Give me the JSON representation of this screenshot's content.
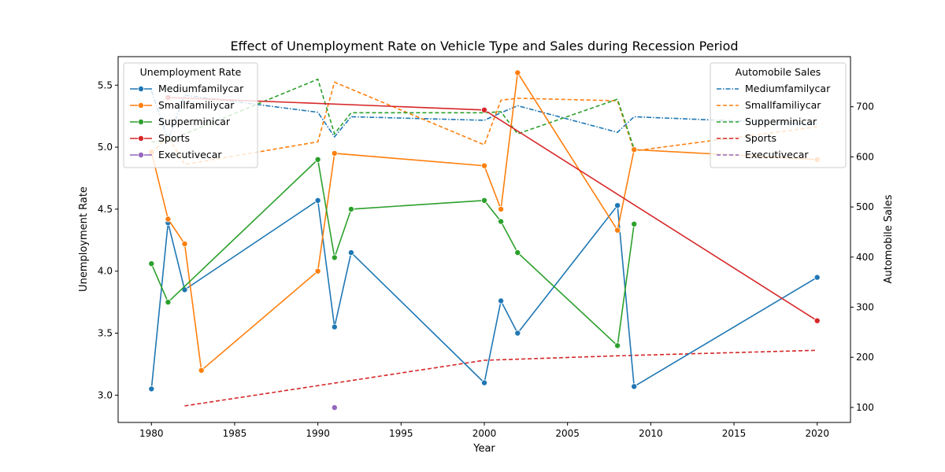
{
  "chart_data": {
    "type": "line",
    "title": "Effect of Unemployment Rate on Vehicle Type and Sales during Recession Period",
    "xlabel": "Year",
    "ylabel_left": "Unemployment Rate",
    "ylabel_right": "Automobile Sales",
    "xlim": [
      1978,
      2022
    ],
    "ylim_left": [
      2.78,
      5.73
    ],
    "ylim_right": [
      70,
      800
    ],
    "xticks": [
      1980,
      1985,
      1990,
      1995,
      2000,
      2005,
      2010,
      2015,
      2020
    ],
    "yticks_left": [
      3.0,
      3.5,
      4.0,
      4.5,
      5.0,
      5.5
    ],
    "yticks_right": [
      100,
      200,
      300,
      400,
      500,
      600,
      700
    ],
    "grid": false,
    "legend_left": {
      "title": "Unemployment Rate",
      "placement": "top-left",
      "entries": [
        "Mediumfamilycar",
        "Smallfamiliycar",
        "Supperminicar",
        "Sports",
        "Executivecar"
      ]
    },
    "legend_right": {
      "title": "Automobile Sales",
      "placement": "top-right",
      "entries": [
        "Mediumfamilycar",
        "Smallfamiliycar",
        "Supperminicar",
        "Sports",
        "Executivecar"
      ]
    },
    "colors": {
      "Mediumfamilycar": "#1f77b4",
      "Smallfamiliycar": "#ff7f0e",
      "Supperminicar": "#2ca02c",
      "Sports": "#d62728",
      "Executivecar": "#9467bd"
    },
    "unemployment_series": [
      {
        "name": "Mediumfamilycar",
        "x": [
          1980,
          1981,
          1982,
          1990,
          1991,
          1992,
          2000,
          2001,
          2002,
          2008,
          2009,
          2020
        ],
        "y": [
          3.05,
          4.39,
          3.85,
          4.57,
          3.55,
          4.15,
          3.1,
          3.76,
          3.5,
          4.53,
          3.07,
          3.95
        ]
      },
      {
        "name": "Smallfamiliycar",
        "x": [
          1980,
          1981,
          1982,
          1983,
          1990,
          1991,
          2000,
          2001,
          2002,
          2008,
          2009,
          2020
        ],
        "y": [
          4.96,
          4.42,
          4.22,
          3.2,
          4.0,
          4.95,
          4.85,
          4.5,
          5.6,
          4.33,
          4.98,
          4.9
        ]
      },
      {
        "name": "Supperminicar",
        "x": [
          1980,
          1981,
          1990,
          1991,
          1992,
          2000,
          2001,
          2002,
          2008,
          2009
        ],
        "y": [
          4.06,
          3.75,
          4.9,
          4.11,
          4.5,
          4.57,
          4.4,
          4.15,
          3.4,
          4.38
        ]
      },
      {
        "name": "Sports",
        "x": [
          1981,
          2000,
          2020
        ],
        "y": [
          5.4,
          5.3,
          3.6
        ]
      },
      {
        "name": "Executivecar",
        "x": [
          1991
        ],
        "y": [
          2.9
        ]
      }
    ],
    "sales_series": [
      {
        "name": "Mediumfamilycar",
        "x": [
          1980,
          1981,
          1982,
          1990,
          1991,
          1992,
          2000,
          2001,
          2002,
          2008,
          2009,
          2020
        ],
        "y": [
          732,
          634,
          723,
          689,
          640,
          680,
          673,
          688,
          702,
          649,
          680,
          665
        ]
      },
      {
        "name": "Smallfamiliycar",
        "x": [
          1980,
          1981,
          1982,
          1990,
          1991,
          2000,
          2001,
          2002,
          2008,
          2009,
          2020
        ],
        "y": [
          608,
          640,
          585,
          630,
          749,
          624,
          713,
          717,
          712,
          612,
          660
        ]
      },
      {
        "name": "Supperminicar",
        "x": [
          1980,
          1981,
          1990,
          1991,
          1992,
          2000,
          2001,
          2002,
          2008,
          2009
        ],
        "y": [
          630,
          632,
          755,
          646,
          688,
          688,
          690,
          646,
          715,
          616
        ]
      },
      {
        "name": "Sports",
        "x": [
          1982,
          2000,
          2008,
          2020
        ],
        "y": [
          103,
          194,
          203,
          214
        ]
      },
      {
        "name": "Executivecar",
        "x": [],
        "y": []
      }
    ]
  }
}
